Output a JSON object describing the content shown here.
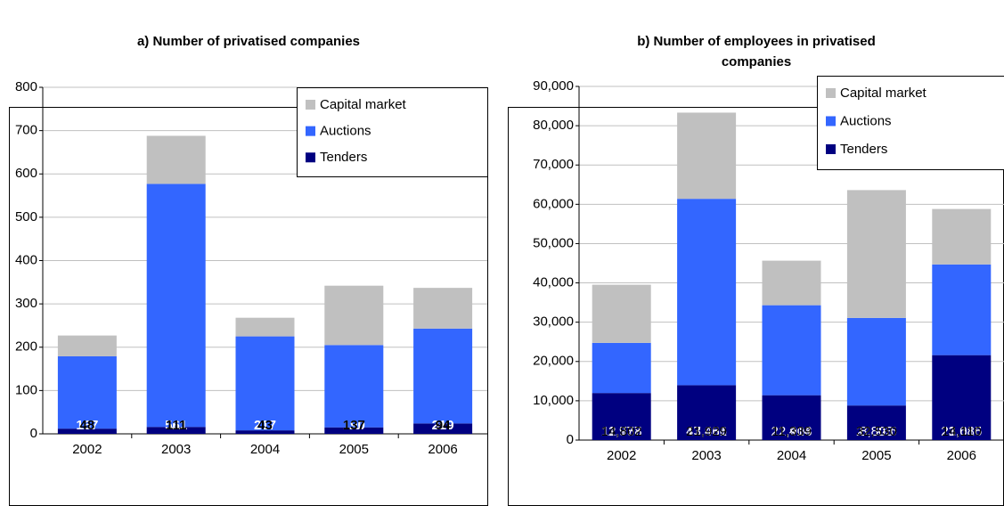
{
  "chart_data": [
    {
      "type": "stacked_bar",
      "title": "a) Number of privatised companies",
      "categories": [
        "2002",
        "2003",
        "2004",
        "2005",
        "2006"
      ],
      "series": [
        {
          "name": "Tenders",
          "color": "#000080",
          "values": [
            12,
            16,
            8,
            15,
            24
          ]
        },
        {
          "name": "Auctions",
          "color": "#3366ff",
          "values": [
            167,
            561,
            217,
            190,
            219
          ]
        },
        {
          "name": "Capital market",
          "color": "#c0c0c0",
          "values": [
            48,
            111,
            43,
            137,
            94
          ]
        }
      ],
      "ylim": [
        0,
        800
      ],
      "yticks": [
        0,
        100,
        200,
        300,
        400,
        500,
        600,
        700,
        800
      ],
      "grid": true,
      "legend": "upper right"
    },
    {
      "type": "stacked_bar",
      "title": "b) Number of employees in privatised companies",
      "categories": [
        "2002",
        "2003",
        "2004",
        "2005",
        "2006"
      ],
      "series": [
        {
          "name": "Tenders",
          "color": "#000080",
          "values": [
            11977,
            13966,
            11414,
            8803,
            21616
          ],
          "value_labels": [
            "11,977",
            "13,966",
            "11,414",
            "8,803",
            "21,616"
          ]
        },
        {
          "name": "Auctions",
          "color": "#3366ff",
          "values": [
            12758,
            47431,
            22903,
            22286,
            23085
          ],
          "value_labels": [
            "12,758",
            "47,431",
            "22,903",
            "22,286",
            "23,085"
          ]
        },
        {
          "name": "Capital market",
          "color": "#c0c0c0",
          "values": [
            14802,
            21929,
            11339,
            32530,
            14110
          ],
          "value_labels": [
            "14,802",
            "21,929",
            "11,339",
            "32,530",
            "14,110"
          ]
        }
      ],
      "ylim": [
        0,
        90000
      ],
      "yticks": [
        0,
        {
          "value": 10000,
          "label": "10,000"
        },
        {
          "value": 20000,
          "label": "20,000"
        },
        {
          "value": 30000,
          "label": "30,000"
        },
        {
          "value": 40000,
          "label": "40,000"
        },
        {
          "value": 50000,
          "label": "50,000"
        },
        {
          "value": 60000,
          "label": "60,000"
        },
        {
          "value": 70000,
          "label": "70,000"
        },
        {
          "value": 80000,
          "label": "80,000"
        },
        {
          "value": 90000,
          "label": "90,000"
        }
      ],
      "grid": true,
      "legend": "upper right"
    }
  ]
}
